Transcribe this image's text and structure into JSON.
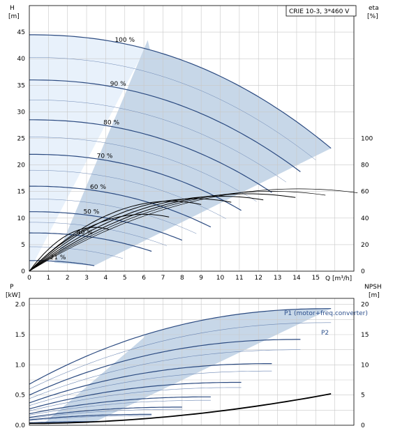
{
  "model_label": "CRIE 10-3, 3*460 V",
  "colors": {
    "frame": "#000000",
    "grid": "#c8c8c8",
    "hq_curve": "#2b4a80",
    "thin_curve": "#000000",
    "region_dark": "#c7d7e8",
    "region_light": "#e8f1fb",
    "label_blue": "#2c4f8c"
  },
  "chart_data": [
    {
      "type": "line",
      "title": "",
      "top_left_axis": {
        "label": "H",
        "unit": "[m]",
        "ticks": [
          "0",
          "5",
          "10",
          "15",
          "20",
          "25",
          "30",
          "35",
          "40",
          "45"
        ]
      },
      "top_right_axis": {
        "label": "eta",
        "unit": "[%]",
        "ticks": [
          "0",
          "20",
          "40",
          "60",
          "80",
          "100"
        ]
      },
      "x_axis": {
        "label": "Q [m³/h]",
        "ticks": [
          "0",
          "1",
          "2",
          "3",
          "4",
          "5",
          "6",
          "7",
          "8",
          "9",
          "10",
          "11",
          "12",
          "13",
          "14",
          "15"
        ]
      },
      "xlim": [
        0,
        17
      ],
      "ylim_left": [
        0,
        50
      ],
      "ylim_right": [
        0,
        200
      ],
      "grid": true,
      "speed_curves": [
        {
          "name": "100 %",
          "h0": 44.5,
          "qmax": 15.8
        },
        {
          "name": "90 %",
          "h0": 36.0,
          "qmax": 14.2
        },
        {
          "name": "80 %",
          "h0": 28.5,
          "qmax": 12.7
        },
        {
          "name": "70 %",
          "h0": 22.0,
          "qmax": 11.1
        },
        {
          "name": "60 %",
          "h0": 16.0,
          "qmax": 9.5
        },
        {
          "name": "50 %",
          "h0": 11.2,
          "qmax": 8.0
        },
        {
          "name": "40 %",
          "h0": 7.2,
          "qmax": 6.4
        },
        {
          "name": "21 %",
          "h0": 2.0,
          "qmax": 3.4
        }
      ],
      "efficiency_peak_eta": 62
    },
    {
      "type": "line",
      "title": "",
      "left_axis": {
        "label": "P",
        "unit": "[kW]",
        "ticks": [
          "0.0",
          "0.5",
          "1.0",
          "1.5",
          "2.0"
        ]
      },
      "right_axis": {
        "label": "NPSH",
        "unit": "[m]",
        "ticks": [
          "0",
          "5",
          "10",
          "15",
          "20"
        ]
      },
      "xlim": [
        0,
        17
      ],
      "ylim_left": [
        0,
        2.1
      ],
      "ylim_right": [
        0,
        21
      ],
      "grid": true,
      "series_labels": [
        "P1 (motor+freq.converter)",
        "P2"
      ],
      "power_curves_p1": [
        {
          "speed": "100 %",
          "p0": 0.68,
          "pmax": 1.93,
          "qmax": 15.8
        },
        {
          "speed": "90 %",
          "p0": 0.5,
          "pmax": 1.42,
          "qmax": 14.2
        },
        {
          "speed": "80 %",
          "p0": 0.37,
          "pmax": 1.02,
          "qmax": 12.7
        },
        {
          "speed": "70 %",
          "p0": 0.27,
          "pmax": 0.71,
          "qmax": 11.1
        },
        {
          "speed": "60 %",
          "p0": 0.19,
          "pmax": 0.47,
          "qmax": 9.5
        },
        {
          "speed": "50 %",
          "p0": 0.13,
          "pmax": 0.3,
          "qmax": 8.0
        },
        {
          "speed": "40 %",
          "p0": 0.09,
          "pmax": 0.18,
          "qmax": 6.4
        },
        {
          "speed": "21 %",
          "p0": 0.04,
          "pmax": 0.06,
          "qmax": 3.4
        }
      ],
      "npsh": {
        "q": [
          0,
          4,
          8,
          12,
          15.8
        ],
        "values": [
          0.3,
          0.9,
          1.9,
          3.4,
          5.2
        ]
      }
    }
  ]
}
